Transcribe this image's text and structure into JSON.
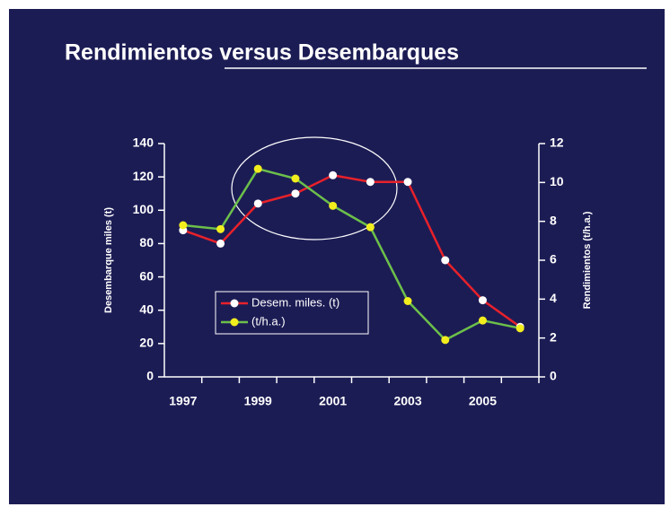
{
  "chart_data": {
    "type": "line",
    "title": "Rendimientos versus Desembarques",
    "ylabel": "Desembarque miles (t)",
    "y2label": "Rendimientos (t/h.a.)",
    "categories": [
      "1997",
      null,
      "1999",
      null,
      "2001",
      null,
      "2003",
      null,
      "2005",
      null
    ],
    "series": [
      {
        "name": "Desem. miles. (t)",
        "color": "#e8212a",
        "marker_color": "#ffffff",
        "axis": "y",
        "values": [
          88,
          80,
          104,
          110,
          121,
          117,
          117,
          70,
          46,
          30
        ]
      },
      {
        "name": "(t/h.a.)",
        "color": "#6cc04a",
        "marker_color": "#f2ee1e",
        "axis": "y2",
        "values": [
          7.8,
          7.6,
          10.7,
          10.2,
          8.8,
          7.7,
          3.9,
          1.9,
          2.9,
          2.5
        ]
      }
    ],
    "ylim": [
      0,
      140
    ],
    "yticks": [
      0,
      20,
      40,
      60,
      80,
      100,
      120,
      140
    ],
    "y2lim": [
      0,
      12
    ],
    "y2ticks": [
      0,
      2,
      4,
      6,
      8,
      10,
      12
    ],
    "legend": "lower left"
  }
}
